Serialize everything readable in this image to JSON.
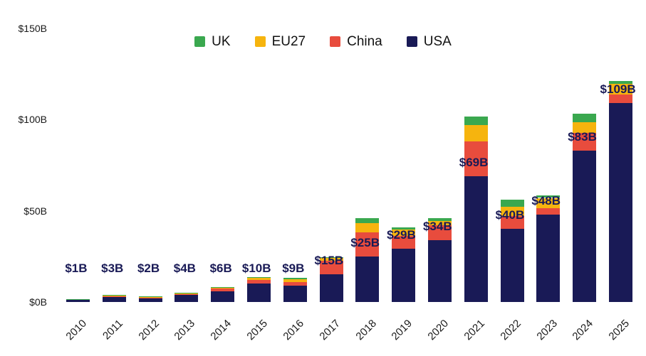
{
  "chart_data": {
    "type": "bar",
    "stacked": true,
    "title": "",
    "xlabel": "",
    "ylabel": "",
    "ylim": [
      0,
      150
    ],
    "grid": false,
    "legend_position": "top-center",
    "categories": [
      "2010",
      "2011",
      "2012",
      "2013",
      "2014",
      "2015",
      "2016",
      "2017",
      "2018",
      "2019",
      "2020",
      "2021",
      "2022",
      "2023",
      "2024",
      "2025"
    ],
    "series": [
      {
        "name": "USA",
        "color": "#191a56",
        "values": [
          1.2,
          3,
          2.2,
          4,
          6,
          10,
          9,
          15,
          25,
          29,
          34,
          69,
          40,
          48,
          83,
          109
        ]
      },
      {
        "name": "China",
        "color": "#e84c3d",
        "values": [
          0.2,
          0.3,
          0.3,
          0.4,
          1.2,
          2,
          2,
          7.5,
          13,
          7,
          8,
          19,
          7,
          3.5,
          9.5,
          4.5
        ]
      },
      {
        "name": "EU27",
        "color": "#f6b40e",
        "values": [
          0.2,
          0.3,
          0.4,
          0.5,
          0.8,
          1.2,
          1.5,
          1.5,
          5,
          3.5,
          2.5,
          9,
          5,
          5.5,
          6,
          6
        ]
      },
      {
        "name": "UK",
        "color": "#3aa84f",
        "values": [
          0.1,
          0.15,
          0.15,
          0.2,
          0.3,
          0.4,
          0.6,
          0.6,
          3,
          1.5,
          1.5,
          4.5,
          4,
          1.5,
          4.5,
          1.5
        ]
      }
    ],
    "bar_labels": [
      "$1B",
      "$3B",
      "$2B",
      "$4B",
      "$6B",
      "$10B",
      "$9B",
      "$15B",
      "$25B",
      "$29B",
      "$34B",
      "$69B",
      "$40B",
      "$48B",
      "$83B",
      "$109B"
    ],
    "bar_labels_represent": "USA series value",
    "yticks": [
      {
        "value": 0,
        "label": "$0B"
      },
      {
        "value": 50,
        "label": "$50B"
      },
      {
        "value": 100,
        "label": "$100B"
      },
      {
        "value": 150,
        "label": "$150B"
      }
    ],
    "legend_items": [
      {
        "label": "UK",
        "color": "#3aa84f"
      },
      {
        "label": "EU27",
        "color": "#f6b40e"
      },
      {
        "label": "China",
        "color": "#e84c3d"
      },
      {
        "label": "USA",
        "color": "#191a56"
      }
    ]
  }
}
